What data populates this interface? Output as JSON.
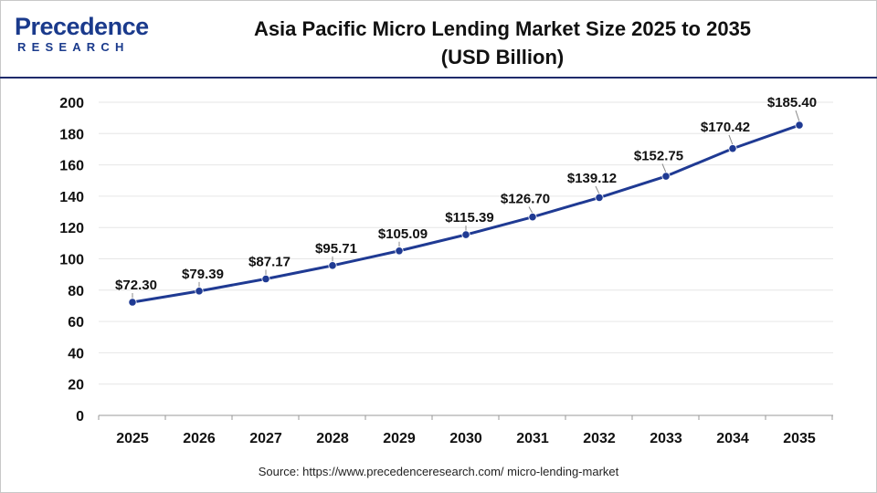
{
  "logo": {
    "wordmark": "Precedence",
    "subtext": "RESEARCH"
  },
  "title_line1": "Asia Pacific Micro Lending Market Size 2025 to 2035",
  "title_line2": "(USD Billion)",
  "source": "Source: https://www.precedenceresearch.com/ micro-lending-market",
  "colors": {
    "line": "#1f3a93",
    "brand": "#1a3a8c",
    "rule": "#1f2b6b",
    "grid": "#e6e6e6"
  },
  "chart_data": {
    "type": "line",
    "title": "Asia Pacific Micro Lending Market Size 2025 to 2035 (USD Billion)",
    "xlabel": "",
    "ylabel": "",
    "categories": [
      "2025",
      "2026",
      "2027",
      "2028",
      "2029",
      "2030",
      "2031",
      "2032",
      "2033",
      "2034",
      "2035"
    ],
    "series": [
      {
        "values": [
          72.3,
          79.39,
          87.17,
          95.71,
          105.09,
          115.39,
          126.7,
          139.12,
          152.75,
          170.42,
          185.4
        ],
        "labels": [
          "$72.30",
          "$79.39",
          "$87.17",
          "$95.71",
          "$105.09",
          "$115.39",
          "$126.70",
          "$139.12",
          "$152.75",
          "$170.42",
          "$185.40"
        ]
      }
    ],
    "ylim": [
      0,
      200
    ],
    "yticks": [
      "0",
      "20",
      "40",
      "60",
      "80",
      "100",
      "120",
      "140",
      "160",
      "180",
      "200"
    ],
    "grid": true,
    "legend": "none"
  }
}
